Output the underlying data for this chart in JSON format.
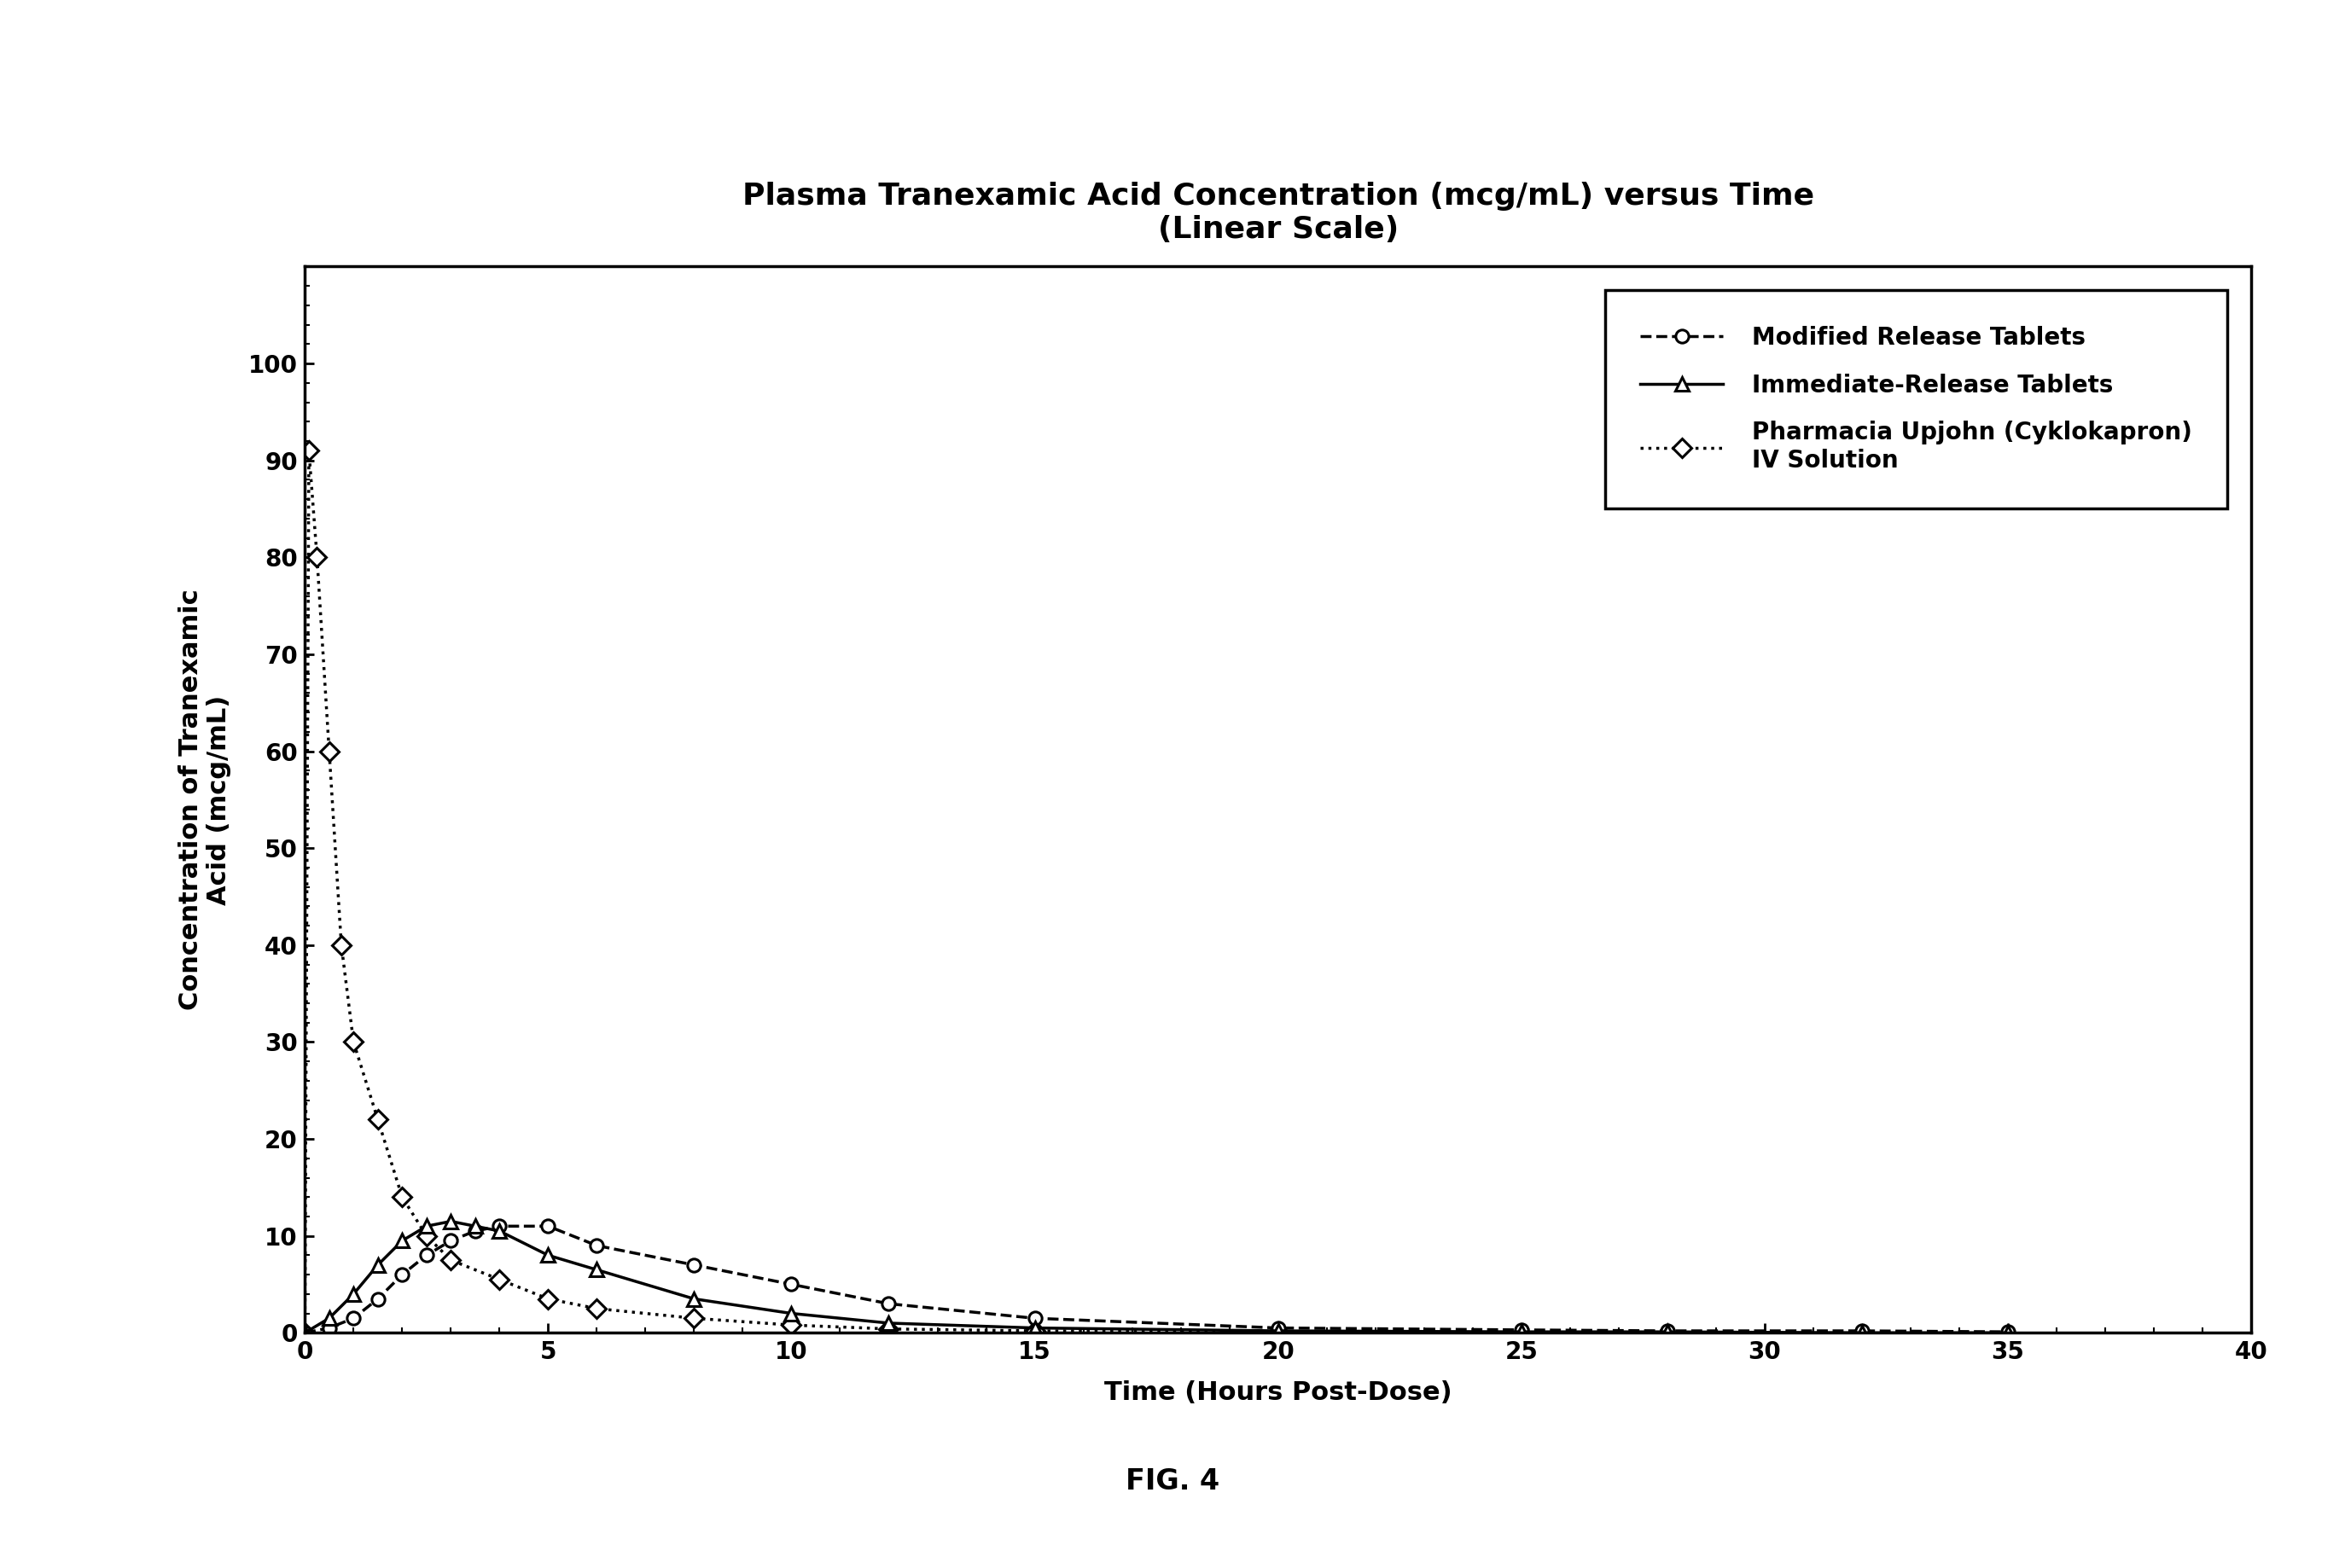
{
  "title": "Plasma Tranexamic Acid Concentration (mcg/mL) versus Time\n(Linear Scale)",
  "xlabel": "Time (Hours Post-Dose)",
  "ylabel": "Concentration of Tranexamic\nAcid (mcg/mL)",
  "xlim": [
    0,
    40
  ],
  "ylim": [
    0,
    110
  ],
  "xticks": [
    0,
    5,
    10,
    15,
    20,
    25,
    30,
    35,
    40
  ],
  "yticks": [
    0,
    10,
    20,
    30,
    40,
    50,
    60,
    70,
    80,
    90,
    100
  ],
  "fig_caption": "FIG. 4",
  "series": {
    "modified_release": {
      "label": "Modified Release Tablets",
      "x": [
        0,
        0.5,
        1,
        1.5,
        2,
        2.5,
        3,
        3.5,
        4,
        5,
        6,
        8,
        10,
        12,
        15,
        20,
        25,
        28,
        32,
        35
      ],
      "y": [
        0,
        0.5,
        1.5,
        3.5,
        6,
        8,
        9.5,
        10.5,
        11,
        11,
        9,
        7,
        5,
        3,
        1.5,
        0.5,
        0.3,
        0.2,
        0.2,
        0.1
      ],
      "linestyle": "dashed",
      "marker": "o",
      "color": "#000000"
    },
    "immediate_release": {
      "label": "Immediate-Release Tablets",
      "x": [
        0,
        0.5,
        1,
        1.5,
        2,
        2.5,
        3,
        3.5,
        4,
        5,
        6,
        8,
        10,
        12,
        15,
        20,
        25,
        28,
        32,
        35
      ],
      "y": [
        0,
        1.5,
        4,
        7,
        9.5,
        11,
        11.5,
        11,
        10.5,
        8,
        6.5,
        3.5,
        2,
        1,
        0.5,
        0.2,
        0.1,
        0.1,
        0.0,
        0.0
      ],
      "linestyle": "solid",
      "marker": "^",
      "color": "#000000"
    },
    "iv_solution": {
      "label": "Pharmacia Upjohn (Cyklokapron)\nIV Solution",
      "x": [
        0,
        0.083,
        0.25,
        0.5,
        0.75,
        1.0,
        1.5,
        2,
        2.5,
        3,
        4,
        5,
        6,
        8,
        10,
        12,
        15,
        20
      ],
      "y": [
        0,
        91,
        80,
        60,
        40,
        30,
        22,
        14,
        10,
        7.5,
        5.5,
        3.5,
        2.5,
        1.5,
        0.8,
        0.4,
        0.2,
        0.1
      ],
      "linestyle": "dotted",
      "marker": "D",
      "color": "#000000"
    }
  },
  "background_color": "#ffffff",
  "title_fontsize": 26,
  "label_fontsize": 22,
  "tick_fontsize": 20,
  "legend_fontsize": 20,
  "caption_fontsize": 24
}
